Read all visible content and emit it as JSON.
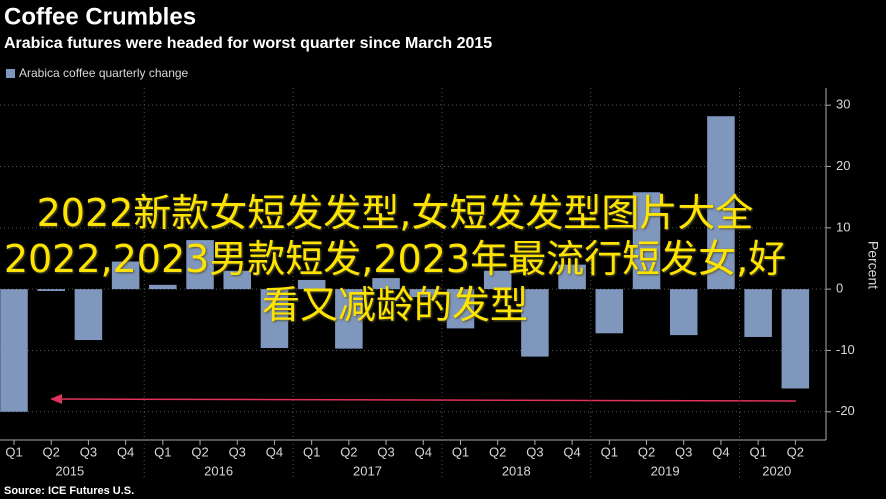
{
  "chart_data": {
    "type": "bar",
    "title": "Coffee Crumbles",
    "subtitle": "Arabica futures were headed for worst quarter since March 2015",
    "y_axis_label": "Percent",
    "source": "Source: ICE Futures U.S.",
    "categories": [
      "Q1",
      "Q2",
      "Q3",
      "Q4",
      "Q1",
      "Q2",
      "Q3",
      "Q4",
      "Q1",
      "Q2",
      "Q3",
      "Q4",
      "Q1",
      "Q2",
      "Q3",
      "Q4",
      "Q1",
      "Q2",
      "Q3",
      "Q4",
      "Q1",
      "Q2"
    ],
    "years": [
      "2015",
      "2016",
      "2017",
      "2018",
      "2019",
      "2020"
    ],
    "series": [
      {
        "name": "Arabica coffee quarterly change",
        "color": "#7f97bd",
        "values": [
          -20,
          -0.3,
          -8.3,
          4.5,
          0.7,
          8,
          3,
          -9.6,
          1.5,
          -9.7,
          1.8,
          -1.3,
          -6.4,
          3,
          -11,
          4,
          -7.2,
          15.8,
          -7.5,
          28.2,
          -7.8,
          -16.2
        ]
      }
    ],
    "ylim": [
      -24.6,
      32.8
    ],
    "yticks": [
      -20,
      -10,
      0,
      10,
      20,
      30
    ],
    "grid": true
  },
  "overlay_text": "2022新款女短发发型,女短发发型图片大全2022,2023男款短发,2023年最流行短发女,好看又减龄的发型"
}
